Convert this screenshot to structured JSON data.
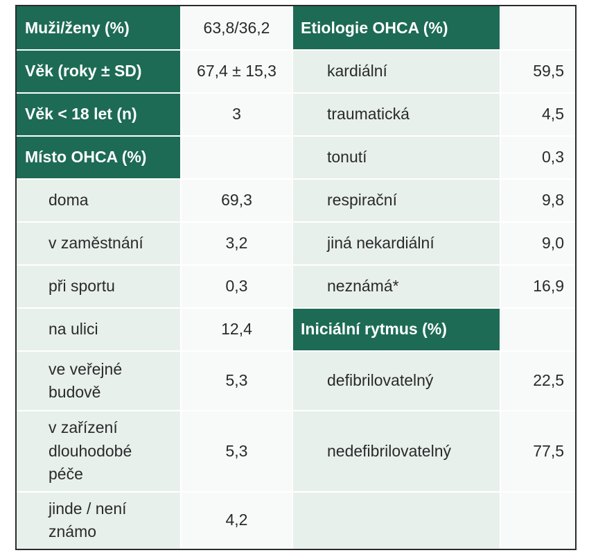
{
  "left_header_rows": [
    {
      "label": "Muži/ženy (%)",
      "value": "63,8/36,2"
    },
    {
      "label": "Věk (roky ± SD)",
      "value": "67,4 ± 15,3"
    },
    {
      "label": "Věk < 18 let (n)",
      "value": "3"
    }
  ],
  "left_section": {
    "title": "Místo OHCA (%)",
    "items": [
      {
        "label": "doma",
        "value": "69,3"
      },
      {
        "label": "v zaměstnání",
        "value": "3,2"
      },
      {
        "label": "při sportu",
        "value": "0,3"
      },
      {
        "label": "na ulici",
        "value": "12,4"
      },
      {
        "label": "ve veřejné budově",
        "value": "5,3"
      },
      {
        "label": "v zařízení dlouhodobé péče",
        "value": "5,3"
      },
      {
        "label": "jinde / není známo",
        "value": "4,2"
      }
    ]
  },
  "right_section_1": {
    "title": "Etiologie OHCA (%)",
    "items": [
      {
        "label": "kardiální",
        "value": "59,5"
      },
      {
        "label": "traumatická",
        "value": "4,5"
      },
      {
        "label": "tonutí",
        "value": "0,3"
      },
      {
        "label": "respirační",
        "value": "9,8"
      },
      {
        "label": "jiná nekardiální",
        "value": "9,0"
      },
      {
        "label": "neznámá*",
        "value": "16,9"
      }
    ]
  },
  "right_section_2": {
    "title": "Iniciální rytmus (%)",
    "items": [
      {
        "label": "defibrilovatelný",
        "value": "22,5"
      },
      {
        "label": "nedefibrilovatelný",
        "value": "77,5"
      }
    ]
  },
  "colors": {
    "header_bg": "#1d6b55",
    "label_bg": "#e8f0ec",
    "value_bg": "#f7faf8"
  }
}
